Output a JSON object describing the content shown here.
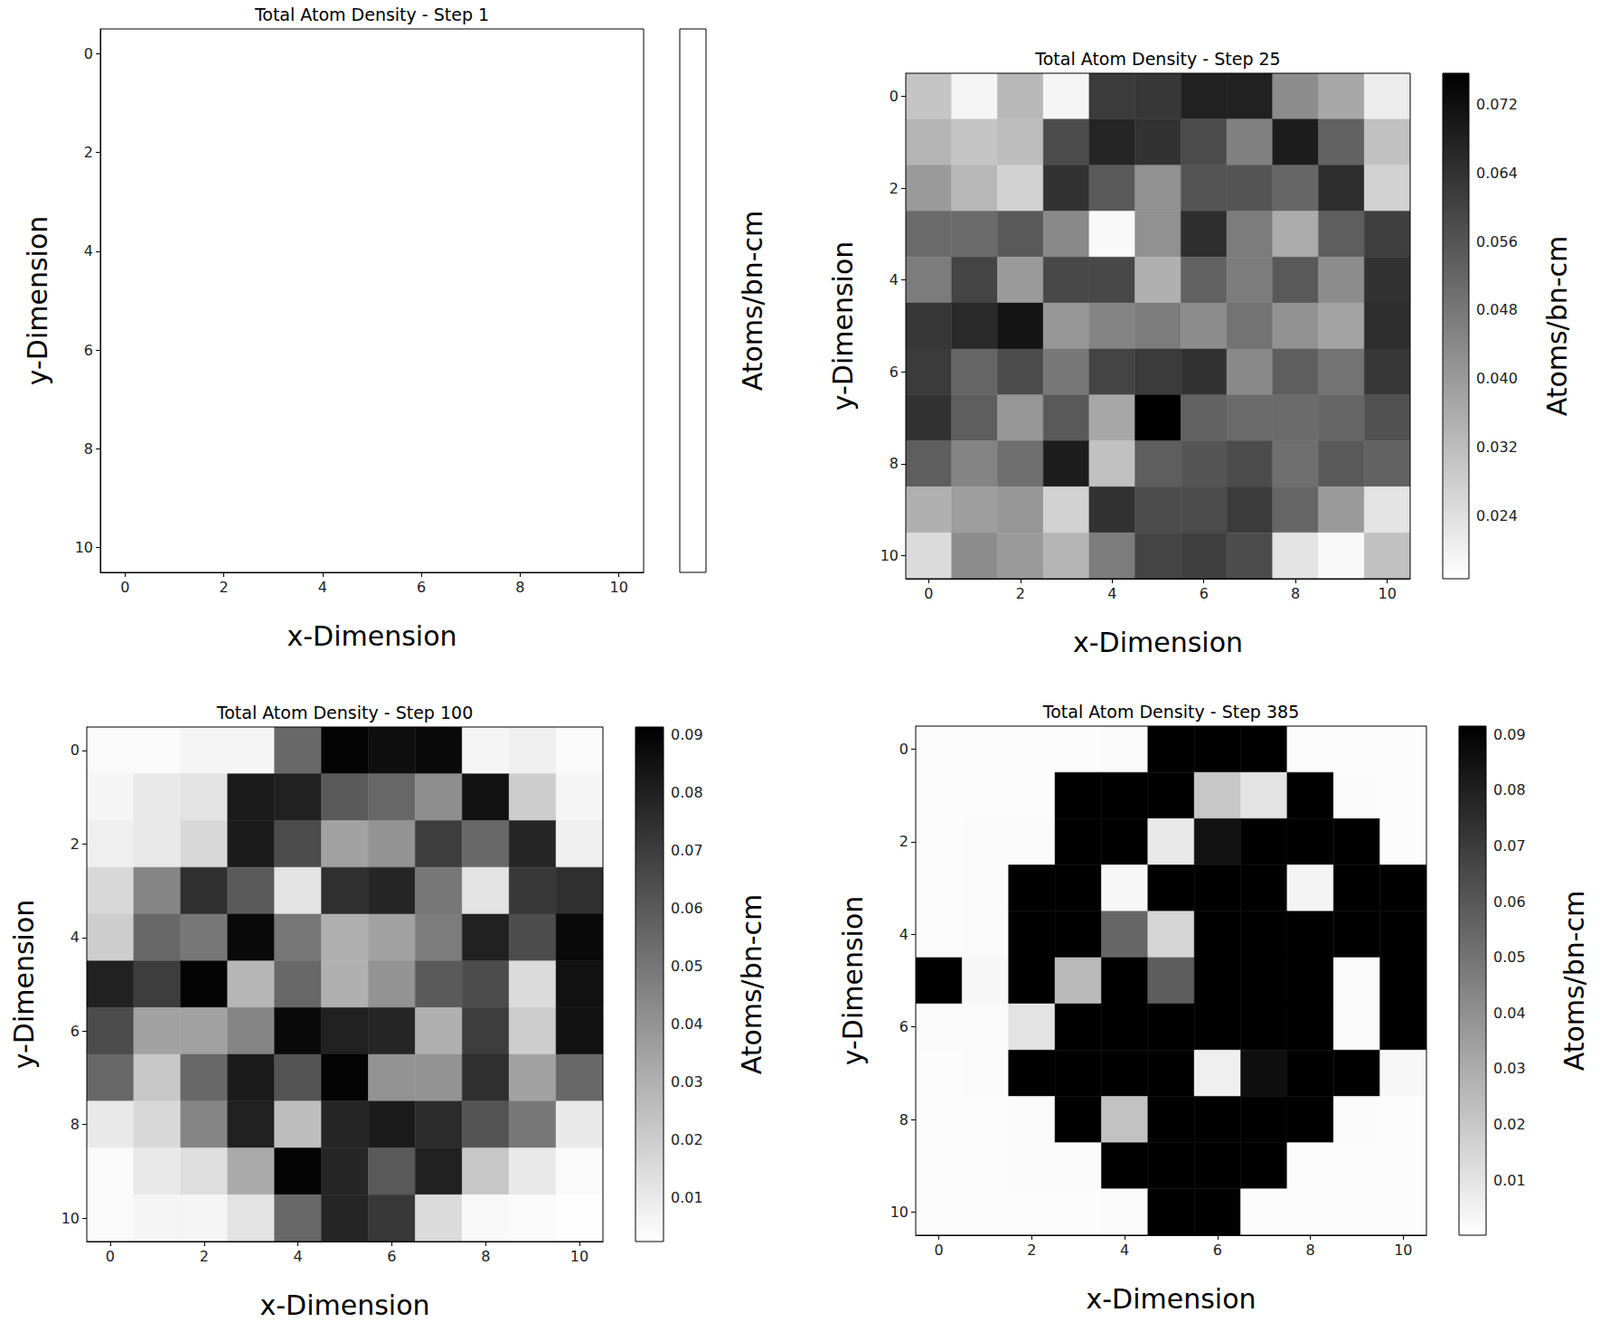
{
  "chart_data": [
    {
      "type": "heatmap",
      "title": "Total Atom Density - Step 1",
      "xlabel": "x-Dimension",
      "ylabel": "y-Dimension",
      "colorbar_label": "Atoms/bn-cm",
      "xlim": [
        -0.5,
        10.5
      ],
      "ylim": [
        10.5,
        -0.5
      ],
      "xticks": [
        0,
        2,
        4,
        6,
        8,
        10
      ],
      "yticks": [
        0,
        2,
        4,
        6,
        8,
        10
      ],
      "cells": [],
      "colorbar_ticks": []
    },
    {
      "type": "heatmap",
      "title": "Total Atom Density - Step 25",
      "xlabel": "x-Dimension",
      "ylabel": "y-Dimension",
      "colorbar_label": "Atoms/bn-cm",
      "xlim": [
        -0.5,
        10.5
      ],
      "ylim": [
        10.5,
        -0.5
      ],
      "xticks": [
        0,
        2,
        4,
        6,
        8,
        10
      ],
      "yticks": [
        0,
        2,
        4,
        6,
        8,
        10
      ],
      "x": [
        0,
        1,
        2,
        3,
        4,
        5,
        6,
        7,
        8,
        9,
        10
      ],
      "y": [
        0,
        1,
        2,
        3,
        4,
        5,
        6,
        7,
        8,
        9,
        10
      ],
      "cells": [
        [
          0.03,
          0.019,
          0.033,
          0.019,
          0.062,
          0.063,
          0.068,
          0.068,
          0.043,
          0.037,
          0.021
        ],
        [
          0.034,
          0.03,
          0.032,
          0.058,
          0.067,
          0.064,
          0.058,
          0.046,
          0.069,
          0.053,
          0.031
        ],
        [
          0.04,
          0.033,
          0.027,
          0.064,
          0.055,
          0.042,
          0.056,
          0.056,
          0.052,
          0.065,
          0.027
        ],
        [
          0.051,
          0.051,
          0.055,
          0.044,
          0.018,
          0.042,
          0.065,
          0.047,
          0.036,
          0.054,
          0.061
        ],
        [
          0.047,
          0.06,
          0.04,
          0.059,
          0.059,
          0.035,
          0.053,
          0.047,
          0.055,
          0.043,
          0.064
        ],
        [
          0.063,
          0.066,
          0.071,
          0.041,
          0.045,
          0.047,
          0.043,
          0.049,
          0.042,
          0.038,
          0.065
        ],
        [
          0.062,
          0.052,
          0.058,
          0.048,
          0.06,
          0.062,
          0.064,
          0.044,
          0.054,
          0.049,
          0.063
        ],
        [
          0.064,
          0.054,
          0.041,
          0.055,
          0.037,
          0.076,
          0.053,
          0.051,
          0.051,
          0.052,
          0.057
        ],
        [
          0.054,
          0.045,
          0.05,
          0.069,
          0.031,
          0.054,
          0.056,
          0.058,
          0.05,
          0.055,
          0.053
        ],
        [
          0.035,
          0.039,
          0.041,
          0.027,
          0.064,
          0.058,
          0.058,
          0.062,
          0.052,
          0.04,
          0.023
        ],
        [
          0.025,
          0.043,
          0.04,
          0.034,
          0.047,
          0.06,
          0.061,
          0.058,
          0.023,
          0.018,
          0.031
        ]
      ],
      "colorbar_range": [
        0.0167,
        0.0756
      ],
      "colorbar_ticks": [
        0.024,
        0.032,
        {
          "value": 0.04,
          "label": "0.040"
        },
        0.048,
        0.056,
        0.064,
        0.072
      ]
    },
    {
      "type": "heatmap",
      "title": "Total Atom Density - Step 100",
      "xlabel": "x-Dimension",
      "ylabel": "y-Dimension",
      "colorbar_label": "Atoms/bn-cm",
      "xlim": [
        -0.5,
        10.5
      ],
      "ylim": [
        10.5,
        -0.5
      ],
      "xticks": [
        0,
        2,
        4,
        6,
        8,
        10
      ],
      "yticks": [
        0,
        2,
        4,
        6,
        8,
        10
      ],
      "x": [
        0,
        1,
        2,
        3,
        4,
        5,
        6,
        7,
        8,
        9,
        10
      ],
      "y": [
        0,
        1,
        2,
        3,
        4,
        5,
        6,
        7,
        8,
        9,
        10
      ],
      "cells": [
        [
          0.004,
          0.004,
          0.006,
          0.006,
          0.055,
          0.09,
          0.086,
          0.088,
          0.006,
          0.008,
          0.004
        ],
        [
          0.006,
          0.01,
          0.012,
          0.082,
          0.08,
          0.06,
          0.055,
          0.042,
          0.085,
          0.02,
          0.006
        ],
        [
          0.008,
          0.01,
          0.016,
          0.082,
          0.065,
          0.035,
          0.04,
          0.07,
          0.055,
          0.078,
          0.008
        ],
        [
          0.016,
          0.045,
          0.075,
          0.06,
          0.012,
          0.075,
          0.078,
          0.05,
          0.012,
          0.072,
          0.075
        ],
        [
          0.02,
          0.055,
          0.05,
          0.088,
          0.05,
          0.03,
          0.035,
          0.048,
          0.08,
          0.065,
          0.088
        ],
        [
          0.08,
          0.07,
          0.09,
          0.028,
          0.055,
          0.03,
          0.04,
          0.06,
          0.065,
          0.015,
          0.085
        ],
        [
          0.065,
          0.035,
          0.035,
          0.045,
          0.088,
          0.08,
          0.078,
          0.03,
          0.07,
          0.02,
          0.085
        ],
        [
          0.055,
          0.022,
          0.055,
          0.082,
          0.062,
          0.09,
          0.04,
          0.04,
          0.075,
          0.035,
          0.055
        ],
        [
          0.01,
          0.016,
          0.045,
          0.08,
          0.025,
          0.078,
          0.082,
          0.076,
          0.062,
          0.05,
          0.01
        ],
        [
          0.004,
          0.01,
          0.014,
          0.032,
          0.09,
          0.078,
          0.06,
          0.08,
          0.022,
          0.01,
          0.004
        ],
        [
          0.004,
          0.006,
          0.006,
          0.012,
          0.055,
          0.078,
          0.072,
          0.015,
          0.005,
          0.004,
          0.003
        ]
      ],
      "colorbar_range": [
        0.0024,
        0.0914
      ],
      "colorbar_ticks": [
        0.01,
        0.02,
        0.03,
        0.04,
        0.05,
        0.06,
        0.07,
        0.08,
        0.09
      ]
    },
    {
      "type": "heatmap",
      "title": "Total Atom Density - Step 385",
      "xlabel": "x-Dimension",
      "ylabel": "y-Dimension",
      "colorbar_label": "Atoms/bn-cm",
      "xlim": [
        -0.5,
        10.5
      ],
      "ylim": [
        10.5,
        -0.5
      ],
      "xticks": [
        0,
        2,
        4,
        6,
        8,
        10
      ],
      "yticks": [
        0,
        2,
        4,
        6,
        8,
        10
      ],
      "x": [
        0,
        1,
        2,
        3,
        4,
        5,
        6,
        7,
        8,
        9,
        10
      ],
      "y": [
        0,
        1,
        2,
        3,
        4,
        5,
        6,
        7,
        8,
        9,
        10
      ],
      "cells": [
        [
          0.001,
          0.001,
          0.001,
          0.001,
          0.002,
          0.091,
          0.091,
          0.091,
          0.001,
          0.001,
          0.001
        ],
        [
          0.001,
          0.001,
          0.001,
          0.091,
          0.091,
          0.091,
          0.02,
          0.01,
          0.091,
          0.002,
          0.001
        ],
        [
          0.001,
          0.002,
          0.002,
          0.091,
          0.091,
          0.008,
          0.085,
          0.091,
          0.091,
          0.091,
          0.001
        ],
        [
          0.001,
          0.002,
          0.091,
          0.091,
          0.003,
          0.091,
          0.091,
          0.091,
          0.004,
          0.091,
          0.091
        ],
        [
          0.001,
          0.002,
          0.091,
          0.091,
          0.055,
          0.015,
          0.091,
          0.091,
          0.091,
          0.091,
          0.091
        ],
        [
          0.091,
          0.003,
          0.091,
          0.025,
          0.091,
          0.058,
          0.091,
          0.091,
          0.091,
          0.002,
          0.091
        ],
        [
          0.002,
          0.002,
          0.01,
          0.091,
          0.091,
          0.091,
          0.091,
          0.091,
          0.091,
          0.002,
          0.091
        ],
        [
          0.001,
          0.002,
          0.091,
          0.091,
          0.091,
          0.091,
          0.006,
          0.086,
          0.091,
          0.091,
          0.003
        ],
        [
          0.001,
          0.001,
          0.002,
          0.091,
          0.022,
          0.091,
          0.091,
          0.091,
          0.091,
          0.002,
          0.001
        ],
        [
          0.001,
          0.001,
          0.002,
          0.002,
          0.091,
          0.091,
          0.091,
          0.091,
          0.001,
          0.001,
          0.001
        ],
        [
          0.001,
          0.001,
          0.001,
          0.001,
          0.002,
          0.091,
          0.091,
          0.001,
          0.001,
          0.001,
          0.001
        ]
      ],
      "colorbar_range": [
        0.0001,
        0.0915
      ],
      "colorbar_ticks": [
        0.01,
        0.02,
        0.03,
        0.04,
        0.05,
        0.06,
        0.07,
        0.08,
        0.09
      ]
    }
  ]
}
